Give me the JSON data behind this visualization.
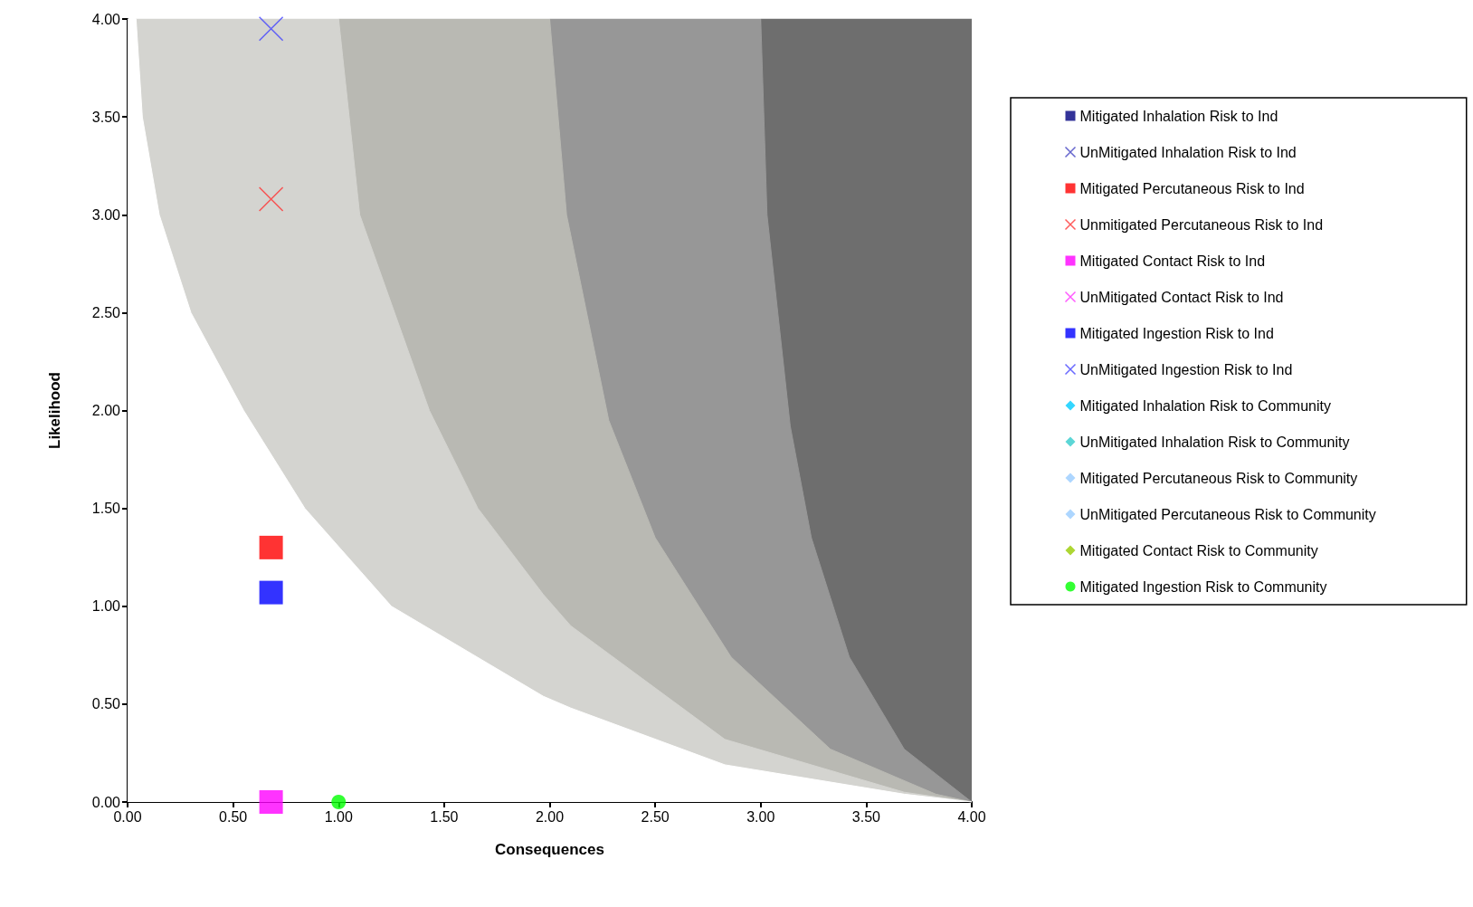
{
  "chart_data": {
    "type": "scatter",
    "xlabel": "Consequences",
    "ylabel": "Likelihood",
    "xlim": [
      0,
      4
    ],
    "ylim": [
      0,
      4
    ],
    "xticks": [
      {
        "value": 0,
        "label": "0.00"
      },
      {
        "value": 0.5,
        "label": "0.50"
      },
      {
        "value": 1,
        "label": "1.00"
      },
      {
        "value": 1.5,
        "label": "1.50"
      },
      {
        "value": 2,
        "label": "2.00"
      },
      {
        "value": 2.5,
        "label": "2.50"
      },
      {
        "value": 3,
        "label": "3.00"
      },
      {
        "value": 3.5,
        "label": "3.50"
      },
      {
        "value": 4,
        "label": "4.00"
      }
    ],
    "yticks": [
      {
        "value": 0,
        "label": "0.00"
      },
      {
        "value": 0.5,
        "label": "0.50"
      },
      {
        "value": 1,
        "label": "1.00"
      },
      {
        "value": 1.5,
        "label": "1.50"
      },
      {
        "value": 2,
        "label": "2.00"
      },
      {
        "value": 2.5,
        "label": "2.50"
      },
      {
        "value": 3,
        "label": "3.00"
      },
      {
        "value": 3.5,
        "label": "3.50"
      },
      {
        "value": 4,
        "label": "4.00"
      }
    ],
    "grid": false,
    "legend": "right",
    "series": [
      {
        "type": "area",
        "color": "#6e6e6e",
        "x": [
          3,
          4
        ],
        "values": [
          4,
          4
        ]
      },
      {
        "type": "area",
        "color": "#979797",
        "x": [
          2,
          3,
          3.03,
          3.14,
          3.24,
          3.42,
          3.68,
          4
        ],
        "values": [
          4,
          4,
          3,
          1.92,
          1.35,
          0.74,
          0.27,
          0
        ]
      },
      {
        "type": "area",
        "color": "#b9b9b3",
        "x": [
          1,
          2,
          2.08,
          2.28,
          2.5,
          2.86,
          3.33,
          3.83,
          4
        ],
        "values": [
          4,
          4,
          3,
          1.95,
          1.35,
          0.74,
          0.27,
          0.04,
          0
        ]
      },
      {
        "type": "area",
        "color": "#d4d4d0",
        "x": [
          0.04,
          1,
          1.1,
          1.43,
          1.66,
          1.97,
          2.1,
          2.83,
          3.68,
          4
        ],
        "values": [
          4,
          4,
          3,
          2,
          1.5,
          1.06,
          0.9,
          0.32,
          0.05,
          0
        ]
      },
      {
        "type": "area",
        "color": "#ffffff",
        "x": [
          0,
          0.04,
          0.07,
          0.15,
          0.3,
          0.55,
          0.84,
          1.25,
          1.97,
          2.1,
          2.83,
          3.68,
          4
        ],
        "values": [
          4,
          4,
          3.5,
          3,
          2.5,
          2,
          1.5,
          1,
          0.54,
          0.48,
          0.19,
          0.04,
          0
        ]
      },
      {
        "name": "Mitigated Inhalation Risk to Ind",
        "color": "#000080",
        "marker": "square"
      },
      {
        "name": "UnMitigated Inhalation Risk to Ind",
        "color": "#4040c0",
        "marker": "cross"
      },
      {
        "name": "Mitigated Percutaneous Risk to Ind",
        "color": "#ff0000",
        "marker": "square",
        "x": [
          0.68
        ],
        "values": [
          1.3
        ]
      },
      {
        "name": "Unmitigated Percutaneous Risk to Ind",
        "color": "#ff3333",
        "marker": "cross",
        "x": [
          0.68
        ],
        "values": [
          3.08
        ]
      },
      {
        "name": "Mitigated Contact Risk to Ind",
        "color": "#ff00ff",
        "marker": "square",
        "x": [
          0.68
        ],
        "values": [
          0
        ]
      },
      {
        "name": "UnMitigated Contact Risk to Ind",
        "color": "#ff33ff",
        "marker": "cross"
      },
      {
        "name": "Mitigated Ingestion Risk to Ind",
        "color": "#0000ff",
        "marker": "square",
        "x": [
          0.68
        ],
        "values": [
          1.07
        ]
      },
      {
        "name": "UnMitigated Ingestion Risk to Ind",
        "color": "#4444ff",
        "marker": "cross",
        "x": [
          0.68
        ],
        "values": [
          3.95
        ]
      },
      {
        "name": "Mitigated Inhalation Risk to Community",
        "color": "#00ccff",
        "marker": "diamond"
      },
      {
        "name": "UnMitigated Inhalation Risk to Community",
        "color": "#33cccc",
        "marker": "diamond"
      },
      {
        "name": "Mitigated Percutaneous Risk to Community",
        "color": "#99ccff",
        "marker": "diamond"
      },
      {
        "name": "UnMitigated Percutaneous Risk to Community",
        "color": "#99ccff",
        "marker": "diamond"
      },
      {
        "name": "Mitigated Contact Risk to Community",
        "color": "#99cc00",
        "marker": "diamond"
      },
      {
        "name": "Mitigated Ingestion Risk to Community",
        "color": "#00ff00",
        "marker": "circle",
        "x": [
          1
        ],
        "values": [
          0
        ]
      }
    ]
  }
}
